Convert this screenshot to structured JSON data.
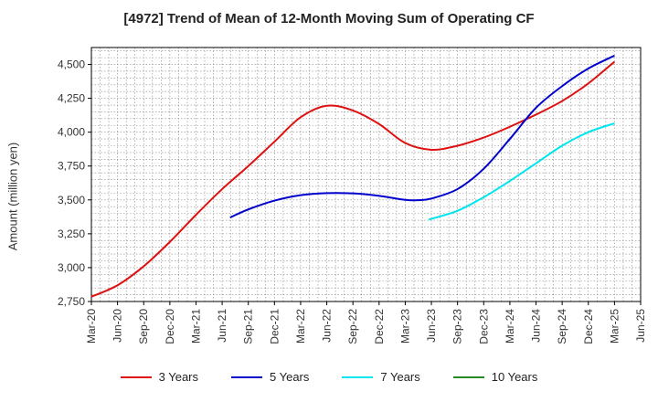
{
  "chart_data": {
    "type": "line",
    "title": "[4972]  Trend of Mean of 12-Month Moving Sum of Operating CF",
    "xlabel": "",
    "ylabel": "Amount (million yen)",
    "ylim": [
      2750,
      4625
    ],
    "yticks": [
      2750,
      3000,
      3250,
      3500,
      3750,
      4000,
      4250,
      4500
    ],
    "ytick_labels": [
      "2,750",
      "3,000",
      "3,250",
      "3,500",
      "3,750",
      "4,000",
      "4,250",
      "4,500"
    ],
    "x_tick_labels": [
      "Mar-20",
      "Jun-20",
      "Sep-20",
      "Dec-20",
      "Mar-21",
      "Jun-21",
      "Sep-21",
      "Dec-21",
      "Mar-22",
      "Jun-22",
      "Sep-22",
      "Dec-22",
      "Mar-23",
      "Jun-23",
      "Sep-23",
      "Dec-23",
      "Mar-24",
      "Jun-24",
      "Sep-24",
      "Dec-24",
      "Mar-25",
      "Jun-25"
    ],
    "grid": true,
    "legend_position": "bottom",
    "series": [
      {
        "name": "3 Years",
        "color": "#dd1111",
        "points": [
          [
            0,
            2785
          ],
          [
            1,
            2870
          ],
          [
            2,
            3010
          ],
          [
            3,
            3190
          ],
          [
            4,
            3390
          ],
          [
            5,
            3580
          ],
          [
            6,
            3750
          ],
          [
            7,
            3930
          ],
          [
            8,
            4110
          ],
          [
            9,
            4195
          ],
          [
            10,
            4160
          ],
          [
            11,
            4060
          ],
          [
            12,
            3920
          ],
          [
            13,
            3870
          ],
          [
            14,
            3900
          ],
          [
            15,
            3960
          ],
          [
            16,
            4040
          ],
          [
            17,
            4130
          ],
          [
            18,
            4230
          ],
          [
            19,
            4360
          ],
          [
            20,
            4520
          ]
        ]
      },
      {
        "name": "5 Years",
        "color": "#0000cc",
        "points": [
          [
            5.3,
            3370
          ],
          [
            6,
            3430
          ],
          [
            7,
            3495
          ],
          [
            8,
            3535
          ],
          [
            9,
            3550
          ],
          [
            10,
            3548
          ],
          [
            11,
            3530
          ],
          [
            12,
            3500
          ],
          [
            12.5,
            3498
          ],
          [
            13,
            3510
          ],
          [
            14,
            3580
          ],
          [
            15,
            3730
          ],
          [
            16,
            3950
          ],
          [
            17,
            4180
          ],
          [
            18,
            4340
          ],
          [
            19,
            4470
          ],
          [
            20,
            4565
          ]
        ]
      },
      {
        "name": "7 Years",
        "color": "#00e5ee",
        "points": [
          [
            12.9,
            3355
          ],
          [
            14,
            3420
          ],
          [
            15,
            3520
          ],
          [
            16,
            3640
          ],
          [
            17,
            3770
          ],
          [
            18,
            3900
          ],
          [
            19,
            4000
          ],
          [
            20,
            4065
          ]
        ]
      },
      {
        "name": "10 Years",
        "color": "#228b22",
        "points": []
      }
    ]
  }
}
